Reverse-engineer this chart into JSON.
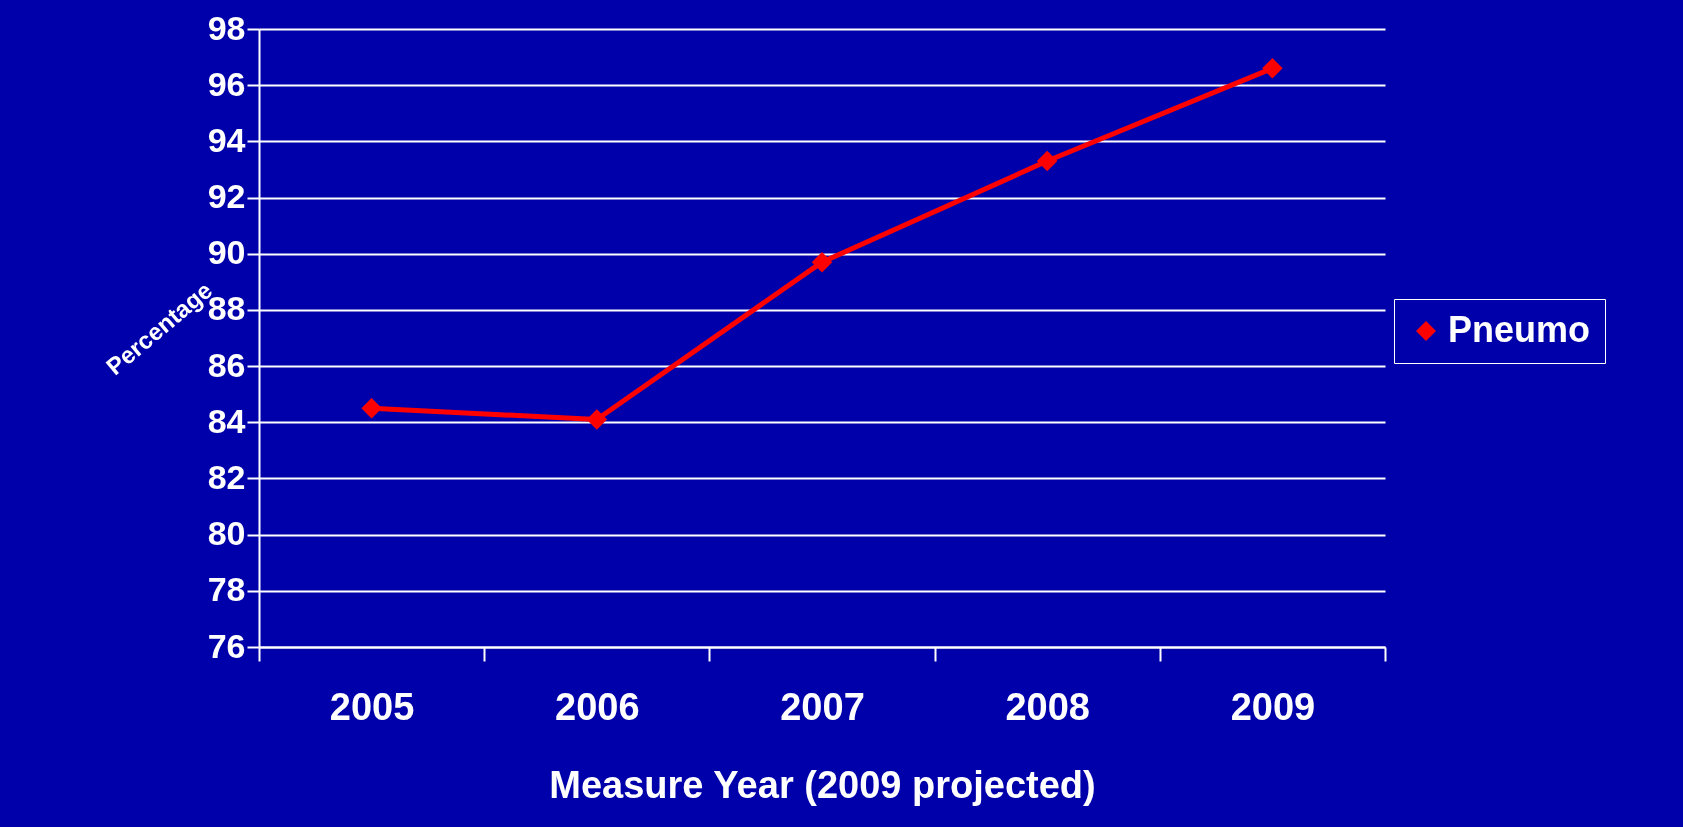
{
  "chart_data": {
    "type": "line",
    "xlabel": "Measure Year (2009 projected)",
    "ylabel": "Percentage",
    "categories": [
      "2005",
      "2006",
      "2007",
      "2008",
      "2009"
    ],
    "series": [
      {
        "name": "Pneumo",
        "color": "#ff0000",
        "values": [
          84.5,
          84.1,
          89.7,
          93.3,
          96.6
        ]
      }
    ],
    "ylim": [
      76,
      98
    ],
    "yticks": [
      76,
      78,
      80,
      82,
      84,
      86,
      88,
      90,
      92,
      94,
      96,
      98
    ],
    "grid": "y",
    "legend": "right",
    "marker": "diamond",
    "line_style": "solid"
  }
}
